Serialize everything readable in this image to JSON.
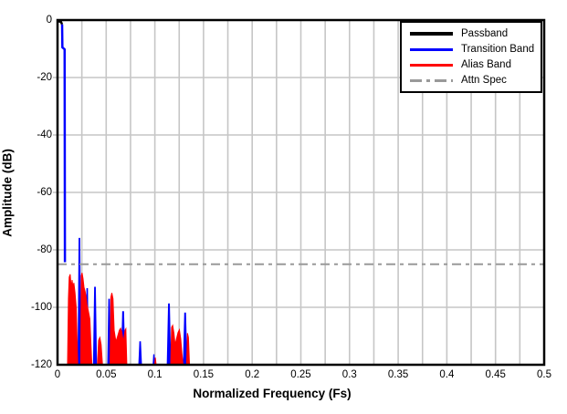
{
  "chart_data": {
    "type": "line",
    "title": "",
    "xlabel": "Normalized Frequency (Fs)",
    "ylabel": "Amplitude (dB)",
    "xlim": [
      0,
      0.5
    ],
    "ylim": [
      -120,
      0
    ],
    "x_ticks": [
      "0",
      "0.05",
      "0.1",
      "0.15",
      "0.2",
      "0.25",
      "0.3",
      "0.35",
      "0.4",
      "0.45",
      "0.5"
    ],
    "y_ticks": [
      "0",
      "-20",
      "-40",
      "-60",
      "-80",
      "-100",
      "-120"
    ],
    "grid": {
      "x_spacing": 0.025,
      "y_spacing": 20,
      "color": "#c6c6c6",
      "visible": true
    },
    "legend_items": [
      {
        "label": "Passband",
        "color": "#000000",
        "style": "solid"
      },
      {
        "label": "Transition Band",
        "color": "#0000ff",
        "style": "solid"
      },
      {
        "label": "Alias Band",
        "color": "#ff0000",
        "style": "solid"
      },
      {
        "label": "Attn Spec",
        "color": "#999999",
        "style": "dash-dot"
      }
    ],
    "legend_position": "top-right",
    "series": [
      {
        "name": "Passband",
        "color": "#000000",
        "render": "line",
        "points": [
          [
            0.0002,
            -0.4
          ],
          [
            0.0035,
            -0.6
          ],
          [
            0.0047,
            -1.5
          ]
        ]
      },
      {
        "name": "Transition Band (main lobe)",
        "color": "#0000ff",
        "render": "line",
        "points": [
          [
            0.0047,
            -1.5
          ],
          [
            0.005,
            -9.5
          ],
          [
            0.0073,
            -10.2
          ],
          [
            0.0076,
            -84.3
          ]
        ]
      },
      {
        "name": "Transition Band (sub-lobes)",
        "color": "#0000ff",
        "render": "spikes",
        "spikes": [
          [
            0.0183,
            -102.5,
            0.0009
          ],
          [
            0.0225,
            -76.0,
            0.0015
          ],
          [
            0.0305,
            -93.5,
            0.0012
          ],
          [
            0.0385,
            -93.0,
            0.0016
          ],
          [
            0.053,
            -97.2,
            0.0014
          ],
          [
            0.0674,
            -101.5,
            0.0019
          ],
          [
            0.0849,
            -112.0,
            0.0014
          ],
          [
            0.099,
            -116.5,
            0.0008
          ],
          [
            0.1145,
            -98.8,
            0.0018
          ],
          [
            0.1311,
            -102.0,
            0.0018
          ]
        ]
      },
      {
        "name": "Alias Band",
        "color": "#ff0000",
        "render": "lobes",
        "lobes": [
          [
            [
              0.0103,
              -120
            ],
            [
              0.0112,
              -97
            ],
            [
              0.012,
              -89.5
            ],
            [
              0.013,
              -88.5
            ],
            [
              0.014,
              -93
            ],
            [
              0.015,
              -90.5
            ],
            [
              0.0158,
              -93
            ],
            [
              0.0168,
              -91.5
            ],
            [
              0.018,
              -95
            ],
            [
              0.0192,
              -100
            ],
            [
              0.02,
              -110
            ],
            [
              0.0208,
              -120
            ]
          ],
          [
            [
              0.0238,
              -120
            ],
            [
              0.0244,
              -89
            ],
            [
              0.0252,
              -88
            ],
            [
              0.0262,
              -90
            ],
            [
              0.0272,
              -93
            ],
            [
              0.0284,
              -94.5
            ],
            [
              0.0292,
              -96
            ],
            [
              0.0302,
              -99
            ],
            [
              0.0315,
              -101
            ],
            [
              0.0332,
              -104
            ],
            [
              0.035,
              -118
            ],
            [
              0.0354,
              -120
            ]
          ],
          [
            [
              0.041,
              -120
            ],
            [
              0.0422,
              -111.5
            ],
            [
              0.0435,
              -110.5
            ],
            [
              0.0448,
              -113
            ],
            [
              0.0462,
              -120
            ]
          ],
          [
            [
              0.054,
              -120
            ],
            [
              0.0548,
              -96.5
            ],
            [
              0.0558,
              -95
            ],
            [
              0.057,
              -97
            ],
            [
              0.0582,
              -108
            ],
            [
              0.06,
              -112
            ],
            [
              0.0618,
              -110
            ],
            [
              0.0635,
              -108
            ],
            [
              0.0648,
              -107.3
            ],
            [
              0.066,
              -108.5
            ],
            [
              0.0676,
              -112
            ],
            [
              0.0694,
              -108
            ],
            [
              0.0702,
              -107.5
            ],
            [
              0.0712,
              -120
            ]
          ],
          [
            [
              0.0998,
              -120
            ],
            [
              0.1005,
              -117.5
            ],
            [
              0.1013,
              -120
            ]
          ],
          [
            [
              0.1163,
              -120
            ],
            [
              0.1172,
              -107
            ],
            [
              0.1183,
              -106.3
            ],
            [
              0.1196,
              -109
            ],
            [
              0.1208,
              -113
            ],
            [
              0.1222,
              -111
            ],
            [
              0.1238,
              -108.8
            ],
            [
              0.1252,
              -107.8
            ],
            [
              0.1266,
              -111
            ],
            [
              0.1278,
              -116
            ],
            [
              0.129,
              -120
            ]
          ],
          [
            [
              0.1326,
              -120
            ],
            [
              0.1335,
              -109
            ],
            [
              0.1345,
              -110.5
            ],
            [
              0.1356,
              -120
            ]
          ]
        ]
      },
      {
        "name": "Attn Spec",
        "color": "#999999",
        "render": "hline",
        "y": -85,
        "dash": "dash-dot"
      }
    ]
  }
}
